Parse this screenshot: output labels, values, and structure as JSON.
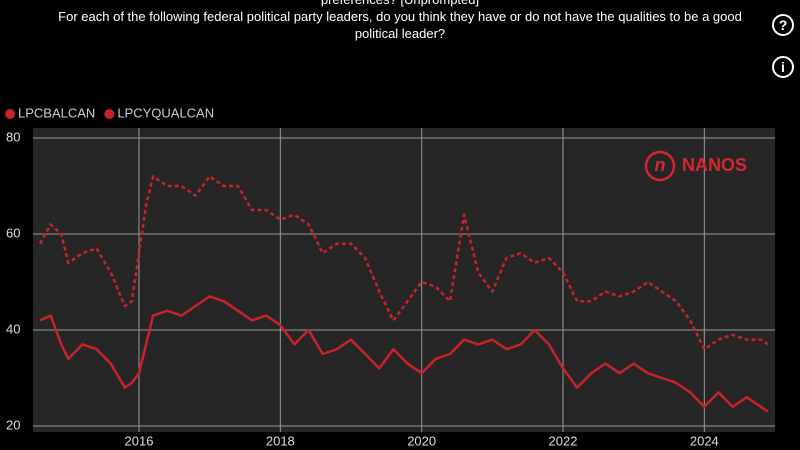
{
  "chart_data": {
    "type": "line",
    "title": "preferences? [Unprompted]",
    "subtitle": "For each of the following federal political party leaders, do you think they have or do not have the qualities to be a good political leader?",
    "logo": "NANOS",
    "x": [
      2014.6,
      2014.75,
      2014.9,
      2015.0,
      2015.2,
      2015.4,
      2015.6,
      2015.8,
      2015.9,
      2016.0,
      2016.1,
      2016.2,
      2016.4,
      2016.6,
      2016.8,
      2017.0,
      2017.2,
      2017.4,
      2017.6,
      2017.8,
      2018.0,
      2018.2,
      2018.4,
      2018.6,
      2018.8,
      2019.0,
      2019.2,
      2019.4,
      2019.6,
      2019.8,
      2020.0,
      2020.2,
      2020.4,
      2020.6,
      2020.8,
      2021.0,
      2021.2,
      2021.4,
      2021.6,
      2021.8,
      2022.0,
      2022.2,
      2022.4,
      2022.6,
      2022.8,
      2023.0,
      2023.2,
      2023.4,
      2023.6,
      2023.8,
      2024.0,
      2024.2,
      2024.4,
      2024.6,
      2024.8,
      2024.9
    ],
    "series": [
      {
        "name": "LPCBALCAN",
        "color": "#c8222c",
        "style": "solid",
        "values": [
          42,
          43,
          37,
          34,
          37,
          36,
          33,
          28,
          29,
          31,
          37,
          43,
          44,
          43,
          45,
          47,
          46,
          44,
          42,
          43,
          41,
          37,
          40,
          35,
          36,
          38,
          35,
          32,
          36,
          33,
          31,
          34,
          35,
          38,
          37,
          38,
          36,
          37,
          40,
          37,
          32,
          28,
          31,
          33,
          31,
          33,
          31,
          30,
          29,
          27,
          24,
          27,
          24,
          26,
          24,
          23
        ]
      },
      {
        "name": "LPCYQUALCAN",
        "color": "#c8222c",
        "style": "dotted",
        "values": [
          58,
          62,
          60,
          54,
          56,
          57,
          52,
          45,
          46,
          56,
          66,
          72,
          70,
          70,
          68,
          72,
          70,
          70,
          65,
          65,
          63,
          64,
          62,
          56,
          58,
          58,
          55,
          48,
          42,
          46,
          50,
          49,
          46,
          64,
          52,
          48,
          55,
          56,
          54,
          55,
          52,
          46,
          46,
          48,
          47,
          48,
          50,
          48,
          46,
          42,
          36,
          38,
          39,
          38,
          38,
          37
        ]
      }
    ],
    "xlim": [
      2014.5,
      2025.0
    ],
    "xticks": [
      2016,
      2018,
      2020,
      2022,
      2024
    ],
    "ylim": [
      20,
      80
    ],
    "yticks": [
      20,
      40,
      60,
      80
    ],
    "grid": true,
    "legend": "top-left"
  },
  "ui": {
    "help": "?",
    "info": "i"
  }
}
